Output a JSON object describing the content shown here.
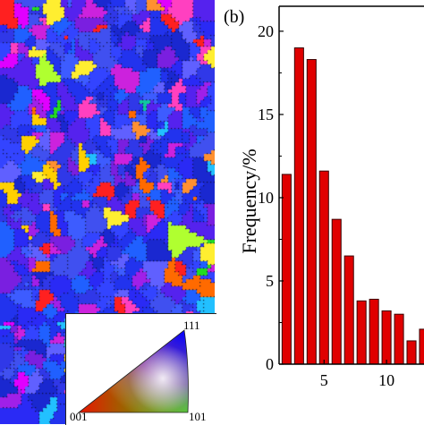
{
  "panel_label": "(b)",
  "ipf_key": {
    "corner_top": "111",
    "corner_left": "001",
    "corner_right": "101"
  },
  "chart_data": {
    "type": "bar",
    "title": "",
    "xlabel": "",
    "ylabel": "Frequency/%",
    "x": [
      2,
      3,
      4,
      5,
      6,
      7,
      8,
      9,
      10,
      11,
      12,
      13
    ],
    "values": [
      11.4,
      19.0,
      18.3,
      11.6,
      8.7,
      6.5,
      3.8,
      3.9,
      3.2,
      3.0,
      1.4,
      2.1
    ],
    "xlim": [
      1.4,
      13.0
    ],
    "ylim": [
      0,
      21.5
    ],
    "x_ticks": [
      5,
      10
    ],
    "y_ticks": [
      0,
      5,
      10,
      15,
      20
    ],
    "bar_color": "#e00000",
    "bar_edge_color": "#3a0000"
  }
}
